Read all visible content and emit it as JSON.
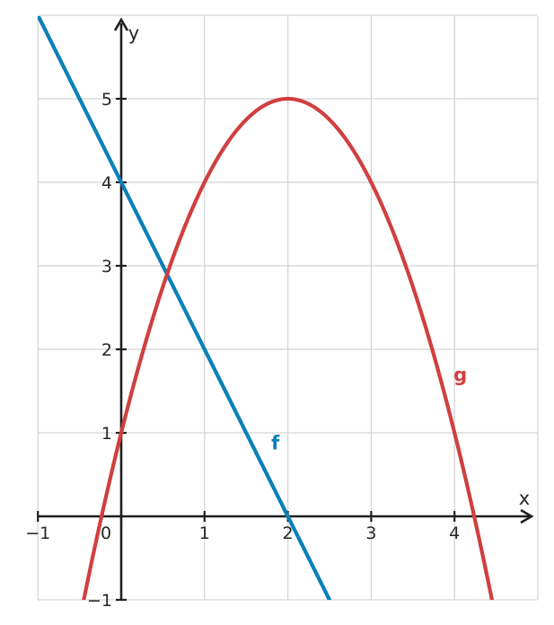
{
  "chart_data": {
    "type": "line",
    "title": "",
    "xlabel": "x",
    "ylabel": "y",
    "xlim": [
      -1,
      5
    ],
    "ylim": [
      -1,
      6
    ],
    "x_ticks": [
      -1,
      0,
      1,
      2,
      3,
      4
    ],
    "y_ticks": [
      -1,
      1,
      2,
      3,
      4,
      5
    ],
    "x_tick_labels": [
      "−1",
      "0",
      "1",
      "2",
      "3",
      "4"
    ],
    "y_tick_labels": [
      "−1",
      "1",
      "2",
      "3",
      "4",
      "5"
    ],
    "grid": true,
    "series": [
      {
        "name": "f",
        "color": "#0a80b8",
        "formula": "y = -2x + 4",
        "points": [
          [
            -1,
            6
          ],
          [
            0,
            4
          ],
          [
            1,
            2
          ],
          [
            2,
            0
          ],
          [
            2.5,
            -1
          ]
        ]
      },
      {
        "name": "g",
        "color": "#d03f3f",
        "formula": "y = -(x - 2)^2 + 5",
        "points": [
          [
            -0.45,
            -1
          ],
          [
            0,
            1
          ],
          [
            1,
            4
          ],
          [
            2,
            5
          ],
          [
            3,
            4
          ],
          [
            4,
            1
          ],
          [
            4.45,
            -1
          ]
        ]
      }
    ]
  }
}
